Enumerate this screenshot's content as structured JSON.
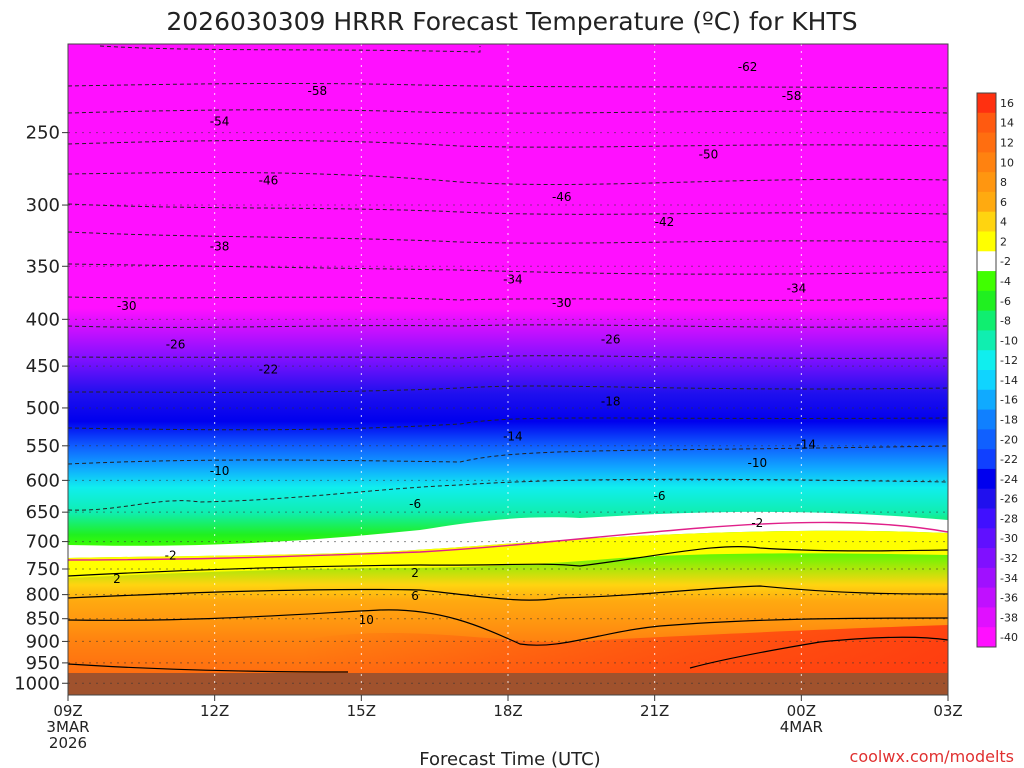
{
  "chart_data": {
    "type": "heatmap",
    "title": "2026030309 HRRR Forecast Temperature (ºC) for KHTS",
    "xlabel": "Forecast Time (UTC)",
    "ylabel": "",
    "x_ticks": [
      {
        "label": "09Z",
        "sub1": "3MAR",
        "sub2": "2026",
        "hour": 0
      },
      {
        "label": "12Z",
        "sub1": "",
        "sub2": "",
        "hour": 3
      },
      {
        "label": "15Z",
        "sub1": "",
        "sub2": "",
        "hour": 6
      },
      {
        "label": "18Z",
        "sub1": "",
        "sub2": "",
        "hour": 9
      },
      {
        "label": "21Z",
        "sub1": "",
        "sub2": "",
        "hour": 12
      },
      {
        "label": "00Z",
        "sub1": "4MAR",
        "sub2": "",
        "hour": 15
      },
      {
        "label": "03Z",
        "sub1": "",
        "sub2": "",
        "hour": 18
      }
    ],
    "xlim": [
      0,
      18
    ],
    "y_ticks": [
      250,
      300,
      350,
      400,
      450,
      500,
      550,
      600,
      650,
      700,
      750,
      800,
      850,
      900,
      950,
      1000
    ],
    "ylim": [
      200,
      1030
    ],
    "y_scale": "log-pressure",
    "colorbar_levels": [
      16,
      14,
      12,
      10,
      8,
      6,
      4,
      2,
      -2,
      -4,
      -6,
      -8,
      -10,
      -12,
      -14,
      -16,
      -18,
      -20,
      -22,
      -24,
      -26,
      -28,
      -30,
      -32,
      -34,
      -36,
      -38,
      -40
    ],
    "colorbar_colors": [
      "#ff3010",
      "#ff5a10",
      "#ff6e10",
      "#ff8210",
      "#ff9610",
      "#ffaa10",
      "#ffd410",
      "#ffff00",
      "#ffffff",
      "#40ff00",
      "#20f020",
      "#10ee70",
      "#10eeb0",
      "#10eeee",
      "#10d4ff",
      "#10aaff",
      "#1080ff",
      "#1060ff",
      "#1040ff",
      "#0000ee",
      "#2010ee",
      "#4010ff",
      "#6010ff",
      "#8010ff",
      "#a010ff",
      "#c010ff",
      "#e010ff",
      "#ff10ff"
    ],
    "contour_labels": [
      {
        "t": "-62",
        "x": 13.9,
        "p": 212
      },
      {
        "t": "-58",
        "x": 5.1,
        "p": 225
      },
      {
        "t": "-58",
        "x": 14.8,
        "p": 228
      },
      {
        "t": "-54",
        "x": 3.1,
        "p": 243
      },
      {
        "t": "-50",
        "x": 13.1,
        "p": 264
      },
      {
        "t": "-46",
        "x": 4.1,
        "p": 282
      },
      {
        "t": "-46",
        "x": 10.1,
        "p": 294
      },
      {
        "t": "-42",
        "x": 12.2,
        "p": 313
      },
      {
        "t": "-38",
        "x": 3.1,
        "p": 333
      },
      {
        "t": "-34",
        "x": 9.1,
        "p": 362
      },
      {
        "t": "-34",
        "x": 14.9,
        "p": 370
      },
      {
        "t": "-30",
        "x": 1.2,
        "p": 387
      },
      {
        "t": "-30",
        "x": 10.1,
        "p": 384
      },
      {
        "t": "-26",
        "x": 2.2,
        "p": 426
      },
      {
        "t": "-26",
        "x": 11.1,
        "p": 421
      },
      {
        "t": "-22",
        "x": 4.1,
        "p": 454
      },
      {
        "t": "-18",
        "x": 11.1,
        "p": 492
      },
      {
        "t": "-14",
        "x": 9.1,
        "p": 537
      },
      {
        "t": "-14",
        "x": 15.1,
        "p": 548
      },
      {
        "t": "-10",
        "x": 3.1,
        "p": 586
      },
      {
        "t": "-10",
        "x": 14.1,
        "p": 574
      },
      {
        "t": "-6",
        "x": 7.1,
        "p": 637
      },
      {
        "t": "-6",
        "x": 12.1,
        "p": 624
      },
      {
        "t": "-2",
        "x": 14.1,
        "p": 668
      },
      {
        "t": "-2",
        "x": 2.1,
        "p": 725
      },
      {
        "t": "2",
        "x": 1.0,
        "p": 769
      },
      {
        "t": "2",
        "x": 7.1,
        "p": 758
      },
      {
        "t": "6",
        "x": 7.1,
        "p": 803
      },
      {
        "t": "10",
        "x": 6.1,
        "p": 853
      }
    ]
  },
  "credit": "coolwx.com/modelts"
}
